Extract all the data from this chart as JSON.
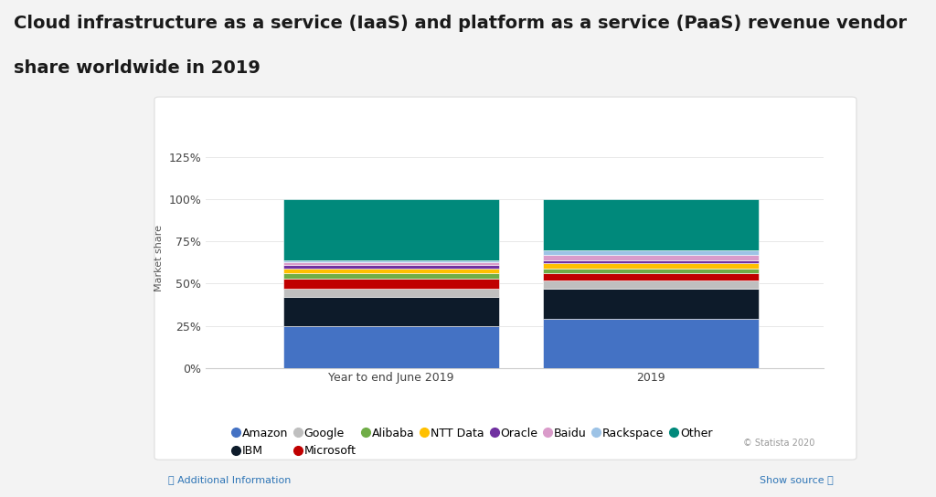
{
  "categories": [
    "Year to end June 2019",
    "2019"
  ],
  "segments": [
    {
      "label": "Amazon",
      "color": "#4472C4",
      "values": [
        25,
        29
      ]
    },
    {
      "label": "IBM",
      "color": "#0D1B2A",
      "values": [
        17,
        18
      ]
    },
    {
      "label": "Google",
      "color": "#BFBFBF",
      "values": [
        5,
        5
      ]
    },
    {
      "label": "Microsoft",
      "color": "#C00000",
      "values": [
        6,
        4
      ]
    },
    {
      "label": "Alibaba",
      "color": "#70AD47",
      "values": [
        3,
        3
      ]
    },
    {
      "label": "NTT Data",
      "color": "#FFC000",
      "values": [
        3,
        3
      ]
    },
    {
      "label": "Oracle",
      "color": "#7030A0",
      "values": [
        2,
        2
      ]
    },
    {
      "label": "Baidu",
      "color": "#DA9BCA",
      "values": [
        2,
        3
      ]
    },
    {
      "label": "Rackspace",
      "color": "#9DC3E6",
      "values": [
        1,
        3
      ]
    },
    {
      "label": "Other",
      "color": "#00897B",
      "values": [
        36,
        30
      ]
    }
  ],
  "title_line1": "Cloud infrastructure as a service (IaaS) and platform as a service (PaaS) revenue vendor",
  "title_line2": "share worldwide in 2019",
  "ylabel": "Market share",
  "ylim": [
    0,
    130
  ],
  "yticks": [
    0,
    25,
    50,
    75,
    100,
    125
  ],
  "ytick_labels": [
    "0%",
    "25%",
    "50%",
    "75%",
    "100%",
    "125%"
  ],
  "outer_bg": "#F3F3F3",
  "card_bg": "#FFFFFF",
  "title_fontsize": 14,
  "legend_fontsize": 9,
  "bar_width": 0.35,
  "bar_positions": [
    0.3,
    0.72
  ],
  "xlim": [
    0.0,
    1.0
  ],
  "statista_text": "© Statista 2020",
  "additional_info": "ⓘ Additional Information",
  "show_source": "Show source ⓘ"
}
